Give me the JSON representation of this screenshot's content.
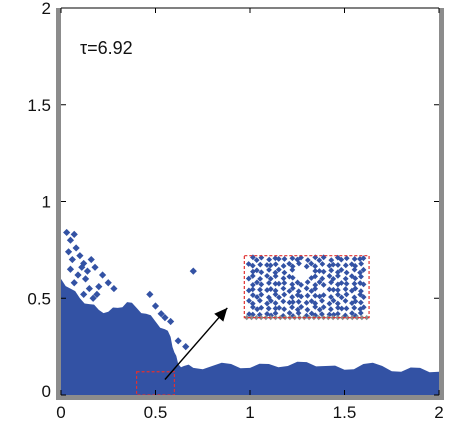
{
  "chart_data": {
    "type": "scatter",
    "title": "",
    "xlabel": "",
    "ylabel": "",
    "xlim": [
      0,
      2
    ],
    "ylim": [
      0,
      2
    ],
    "xticks": [
      "0",
      "0.5",
      "1",
      "1.5",
      "2"
    ],
    "yticks": [
      "0",
      "0.5",
      "1",
      "1.5",
      "2"
    ],
    "grid": false,
    "annotation": "τ=6.92",
    "colors": {
      "particles": "#3352a4",
      "frame": "#8c8c8c",
      "zoom_box": "#e03030",
      "arrow": "#000000"
    },
    "bed_profile": {
      "x": [
        0.0,
        0.05,
        0.1,
        0.15,
        0.2,
        0.25,
        0.3,
        0.35,
        0.4,
        0.45,
        0.5,
        0.55,
        0.58,
        0.6,
        0.62,
        0.65,
        0.7,
        0.8,
        0.9,
        1.0,
        1.1,
        1.2,
        1.3,
        1.4,
        1.5,
        1.6,
        1.7,
        1.8,
        1.9,
        2.0
      ],
      "y": [
        0.6,
        0.55,
        0.5,
        0.47,
        0.44,
        0.43,
        0.45,
        0.48,
        0.45,
        0.42,
        0.38,
        0.34,
        0.3,
        0.22,
        0.16,
        0.15,
        0.14,
        0.15,
        0.16,
        0.14,
        0.16,
        0.15,
        0.17,
        0.15,
        0.13,
        0.16,
        0.15,
        0.12,
        0.14,
        0.12
      ]
    },
    "ejected_particles": {
      "x": [
        0.03,
        0.05,
        0.07,
        0.04,
        0.06,
        0.08,
        0.1,
        0.12,
        0.05,
        0.09,
        0.11,
        0.14,
        0.16,
        0.13,
        0.07,
        0.18,
        0.2,
        0.15,
        0.17,
        0.22,
        0.19,
        0.25,
        0.28,
        0.12,
        0.47,
        0.5,
        0.53,
        0.55,
        0.58,
        0.62,
        0.66,
        0.7
      ],
      "y": [
        0.84,
        0.8,
        0.83,
        0.74,
        0.7,
        0.76,
        0.72,
        0.68,
        0.65,
        0.62,
        0.66,
        0.64,
        0.7,
        0.6,
        0.58,
        0.66,
        0.56,
        0.55,
        0.5,
        0.62,
        0.52,
        0.58,
        0.55,
        0.52,
        0.52,
        0.46,
        0.42,
        0.4,
        0.38,
        0.28,
        0.25,
        0.64
      ]
    },
    "zoom_region": {
      "x": [
        0.4,
        0.6
      ],
      "y": [
        0.0,
        0.12
      ]
    },
    "inset_region": {
      "x": [
        0.97,
        1.63
      ],
      "y": [
        0.4,
        0.72
      ]
    }
  }
}
